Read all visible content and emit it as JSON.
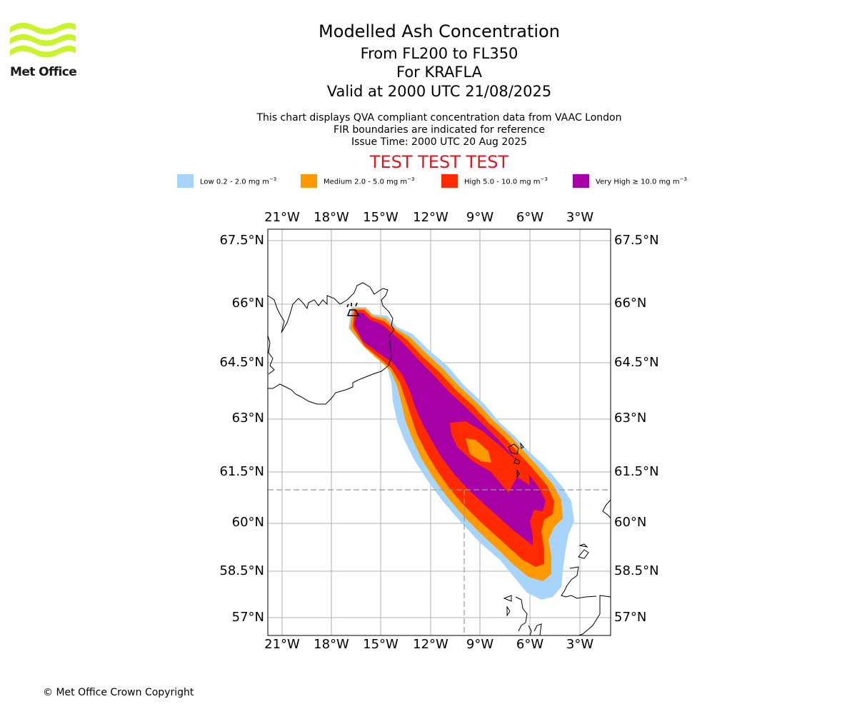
{
  "logo": {
    "text": "Met Office"
  },
  "title": {
    "line1": "Modelled Ash Concentration",
    "line2": "From FL200 to FL350",
    "line3": "For KRAFLA",
    "line4": "Valid at 2000 UTC 21/08/2025"
  },
  "info": {
    "line1": "This chart displays QVA compliant concentration data from VAAC London",
    "line2": "FIR boundaries are indicated for reference",
    "line3": "Issue Time: 2000 UTC 20 Aug 2025"
  },
  "test_banner": "TEST TEST TEST",
  "legend": [
    {
      "label": "Low 0.2 - 2.0 mg m",
      "unit_exp": "−3",
      "color": "#a6d4fa"
    },
    {
      "label": "Medium 2.0 - 5.0 mg m",
      "unit_exp": "−3",
      "color": "#ff9900"
    },
    {
      "label": "High 5.0 - 10.0 mg m",
      "unit_exp": "−3",
      "color": "#ff2a00"
    },
    {
      "label": "Very High  ≥  10.0 mg m",
      "unit_exp": "−3",
      "color": "#a600a6"
    }
  ],
  "axes": {
    "lon_ticks": [
      "21°W",
      "18°W",
      "15°W",
      "12°W",
      "9°W",
      "6°W",
      "3°W"
    ],
    "lat_ticks": [
      "67.5°N",
      "66°N",
      "64.5°N",
      "63°N",
      "61.5°N",
      "60°N",
      "58.5°N",
      "57°N"
    ]
  },
  "volcano": {
    "name": "KRAFLA",
    "icon": "volcano-icon"
  },
  "copyright": "© Met Office Crown Copyright"
}
